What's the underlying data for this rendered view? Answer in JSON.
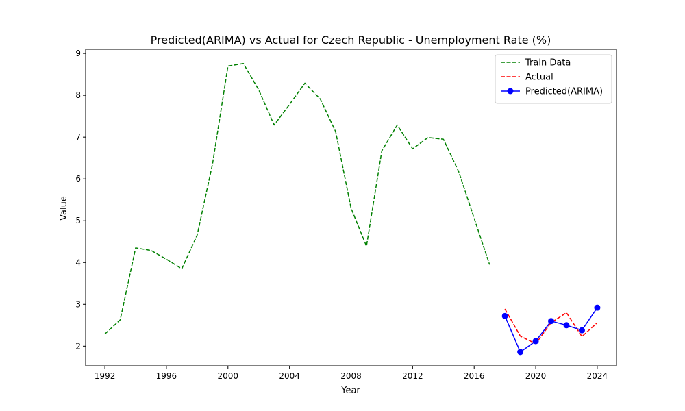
{
  "chart_data": {
    "type": "line",
    "title": "Predicted(ARIMA) vs Actual for Czech Republic - Unemployment Rate (%)",
    "xlabel": "Year",
    "ylabel": "Value",
    "xlim": [
      1990.75,
      2025.25
    ],
    "ylim": [
      1.53,
      9.1
    ],
    "xticks": [
      1992,
      1996,
      2000,
      2004,
      2008,
      2012,
      2016,
      2020,
      2024
    ],
    "yticks": [
      2,
      3,
      4,
      5,
      6,
      7,
      8,
      9
    ],
    "grid": false,
    "legend_position": "top-right",
    "series": [
      {
        "name": "Train Data",
        "color": "#008000",
        "style": "dashed",
        "marker": "none",
        "x": [
          1992,
          1993,
          1994,
          1995,
          1996,
          1997,
          1998,
          1999,
          2000,
          2001,
          2002,
          2003,
          2004,
          2005,
          2006,
          2007,
          2008,
          2009,
          2010,
          2011,
          2012,
          2013,
          2014,
          2015,
          2016,
          2017
        ],
        "y": [
          2.29,
          2.63,
          4.35,
          4.29,
          4.08,
          3.85,
          4.66,
          6.36,
          8.7,
          8.76,
          8.13,
          7.29,
          7.78,
          8.29,
          7.91,
          7.13,
          5.3,
          4.39,
          6.67,
          7.29,
          6.72,
          6.99,
          6.95,
          6.17,
          5.06,
          3.95
        ]
      },
      {
        "name": "Actual",
        "color": "#ff0000",
        "style": "dashed",
        "marker": "none",
        "x": [
          2018,
          2019,
          2020,
          2021,
          2022,
          2023,
          2024
        ],
        "y": [
          2.89,
          2.24,
          2.06,
          2.56,
          2.8,
          2.23,
          2.56
        ]
      },
      {
        "name": "Predicted(ARIMA)",
        "color": "#0000ff",
        "style": "solid",
        "marker": "circle",
        "x": [
          2018,
          2019,
          2020,
          2021,
          2022,
          2023,
          2024
        ],
        "y": [
          2.72,
          1.86,
          2.12,
          2.6,
          2.5,
          2.38,
          2.92
        ]
      }
    ]
  }
}
